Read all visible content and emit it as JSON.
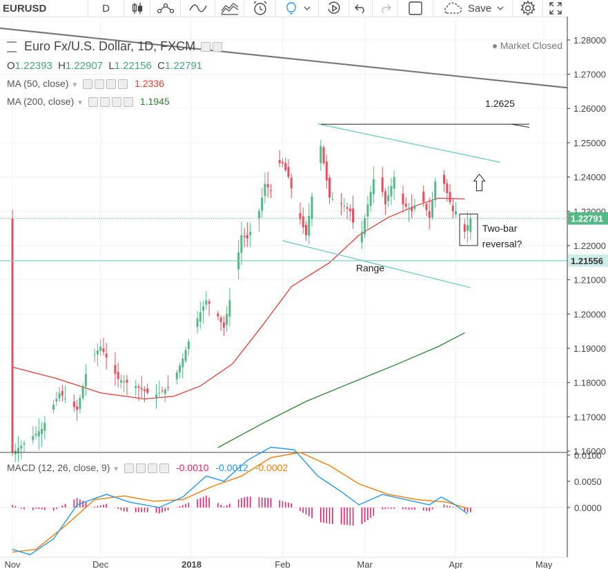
{
  "toolbar": {
    "symbol": "EURUSD",
    "interval": "D",
    "save_label": "Save"
  },
  "legend": {
    "title": "Euro Fx/U.S. Dollar, 1D, FXCM",
    "market_status": "Market Closed",
    "ohlc": {
      "o_label": "O",
      "o_value": "1.22393",
      "h_label": "H",
      "h_value": "1.22907",
      "l_label": "L",
      "l_value": "1.22156",
      "c_label": "C",
      "c_value": "1.22791"
    },
    "ma50": {
      "label": "MA (50, close)",
      "value": "1.2336",
      "color": "#e53935"
    },
    "ma200": {
      "label": "MA (200, close)",
      "value": "1.1945",
      "color": "#2e7d32"
    },
    "macd": {
      "label": "MACD (12, 26, close, 9)",
      "hist_value": "-0.0010",
      "hist_color": "#e91e63",
      "macd_value": "-0.0012",
      "macd_color": "#2196f3",
      "signal_value": "-0.0002",
      "signal_color": "#f57c00"
    }
  },
  "chart_data": {
    "type": "candlestick",
    "symbol": "EURUSD",
    "price_axis": {
      "ylim": [
        1.1596,
        1.2836
      ],
      "ticks": [
        "1.28000",
        "1.27000",
        "1.26000",
        "1.25000",
        "1.24000",
        "1.23000",
        "1.22000",
        "1.21000",
        "1.20000",
        "1.19000",
        "1.18000",
        "1.17000",
        "1.16000"
      ],
      "last_price_label": "1.22791",
      "range_low_label": "1.21556",
      "last_price": 1.22791,
      "range_low": 1.21556
    },
    "macd_axis": {
      "ylim": [
        -0.0095,
        0.0105
      ],
      "ticks": [
        "0.0100",
        "0.0050",
        "0.0000"
      ]
    },
    "x_axis_labels": [
      {
        "label": "Nov",
        "day": 0
      },
      {
        "label": "Dec",
        "day": 30
      },
      {
        "label": "2018",
        "day": 61
      },
      {
        "label": "Feb",
        "day": 92
      },
      {
        "label": "Mar",
        "day": 120
      },
      {
        "label": "Apr",
        "day": 151
      },
      {
        "label": "May",
        "day": 181
      }
    ],
    "colors": {
      "up": "#53b987",
      "down": "#eb4d5c",
      "ma50": "#e53935",
      "ma200": "#2e7d32",
      "macd": "#2196f3",
      "signal": "#f57c00",
      "hist_up": "#e91e63",
      "hist_down": "#e91e63",
      "trend": "#787878",
      "channel": "#7ccfc4"
    },
    "candles": [],
    "ma50": [
      [
        0,
        1.1845
      ],
      [
        15,
        1.1812
      ],
      [
        30,
        1.177
      ],
      [
        45,
        1.1752
      ],
      [
        55,
        1.176
      ],
      [
        64,
        1.179
      ],
      [
        75,
        1.1855
      ],
      [
        85,
        1.1965
      ],
      [
        95,
        1.208
      ],
      [
        108,
        1.215
      ],
      [
        118,
        1.223
      ],
      [
        128,
        1.2282
      ],
      [
        138,
        1.2318
      ],
      [
        145,
        1.2338
      ],
      [
        154,
        1.2336
      ]
    ],
    "ma200": [
      [
        70,
        1.161
      ],
      [
        85,
        1.168
      ],
      [
        100,
        1.1745
      ],
      [
        115,
        1.1798
      ],
      [
        130,
        1.185
      ],
      [
        145,
        1.1905
      ],
      [
        154,
        1.1945
      ]
    ],
    "macd": [
      [
        0,
        -0.008
      ],
      [
        6,
        -0.009
      ],
      [
        14,
        -0.006
      ],
      [
        22,
        0.0005
      ],
      [
        32,
        0.0025
      ],
      [
        40,
        0.001
      ],
      [
        50,
        0.0
      ],
      [
        58,
        0.002
      ],
      [
        66,
        0.006
      ],
      [
        72,
        0.005
      ],
      [
        80,
        0.009
      ],
      [
        88,
        0.0115
      ],
      [
        96,
        0.011
      ],
      [
        104,
        0.006
      ],
      [
        112,
        0.003
      ],
      [
        118,
        0.0005
      ],
      [
        126,
        0.0025
      ],
      [
        134,
        0.0015
      ],
      [
        142,
        0.0005
      ],
      [
        146,
        0.002
      ],
      [
        150,
        0.0008
      ],
      [
        155,
        -0.0012
      ]
    ],
    "signal": [
      [
        0,
        -0.0085
      ],
      [
        8,
        -0.008
      ],
      [
        18,
        -0.0035
      ],
      [
        28,
        0.0015
      ],
      [
        38,
        0.0022
      ],
      [
        48,
        0.0012
      ],
      [
        58,
        0.0015
      ],
      [
        68,
        0.004
      ],
      [
        78,
        0.006
      ],
      [
        88,
        0.0095
      ],
      [
        98,
        0.0105
      ],
      [
        108,
        0.008
      ],
      [
        118,
        0.0045
      ],
      [
        128,
        0.0025
      ],
      [
        138,
        0.0015
      ],
      [
        148,
        0.001
      ],
      [
        155,
        -0.0002
      ]
    ],
    "trendline_upper": [
      [
        -5,
        1.2835
      ],
      [
        195,
        1.2655
      ]
    ],
    "annotations": {
      "target_label": "1.2625",
      "range_label": "Range",
      "reversal_label": "Two-bar reversal?"
    }
  }
}
